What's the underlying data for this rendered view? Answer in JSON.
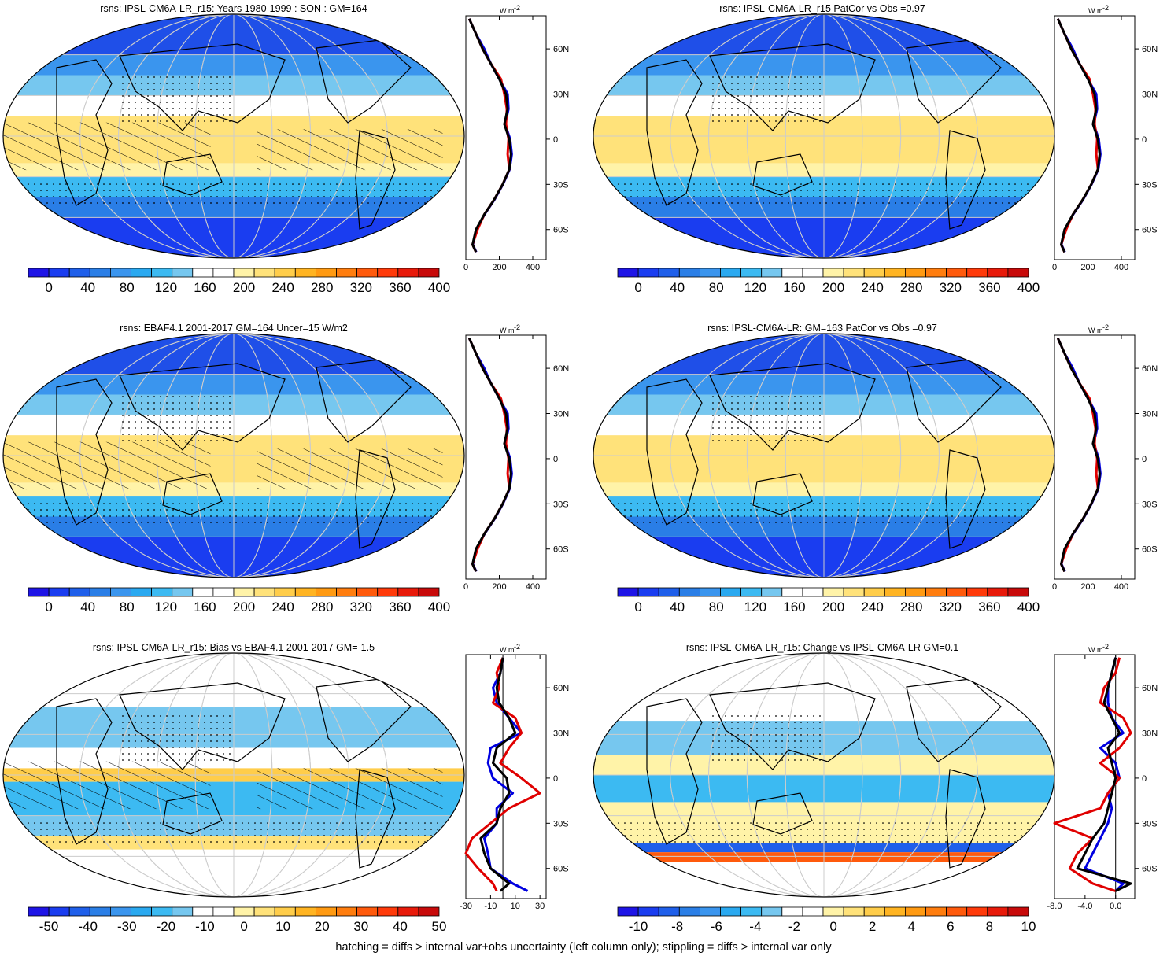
{
  "colorbars": {
    "abs": [
      "#1e14e6",
      "#1a3df0",
      "#1f5fea",
      "#2a7ee6",
      "#3a95ee",
      "#2aa9f0",
      "#3cbaf2",
      "#76c7ef",
      "#ffffff",
      "#ffffff",
      "#fff3a8",
      "#ffe27a",
      "#ffcd4a",
      "#ffb422",
      "#ff9a12",
      "#ff7d0e",
      "#ff5a0c",
      "#ff3a0a",
      "#e81a0a",
      "#c80a0a"
    ],
    "bias": [
      "#1e14e6",
      "#1a3df0",
      "#1f5fea",
      "#2a7ee6",
      "#3a95ee",
      "#2aa9f0",
      "#3cbaf2",
      "#76c7ef",
      "#ffffff",
      "#ffffff",
      "#fff3a8",
      "#ffe27a",
      "#ffcd4a",
      "#ffb422",
      "#ff9a12",
      "#ff7d0e",
      "#ff5a0c",
      "#ff3a0a",
      "#e81a0a",
      "#c80a0a"
    ]
  },
  "panels": [
    {
      "id": "p1",
      "title": "rsns: IPSL-CM6A-LR_r15: Years 1980-1999 : SON : GM=164",
      "cbar_labels": [
        "0",
        "40",
        "80",
        "120",
        "160",
        "200",
        "240",
        "280",
        "320",
        "360",
        "400"
      ],
      "profile_ticks": [
        "0",
        "200",
        "400"
      ],
      "profile_type": "abs"
    },
    {
      "id": "p2",
      "title": "rsns: IPSL-CM6A-LR_r15 PatCor vs Obs =0.97",
      "cbar_labels": [
        "0",
        "40",
        "80",
        "120",
        "160",
        "200",
        "240",
        "280",
        "320",
        "360",
        "400"
      ],
      "profile_ticks": [
        "0",
        "200",
        "400"
      ],
      "profile_type": "abs"
    },
    {
      "id": "p3",
      "title": "rsns: EBAF4.1 2001-2017 GM=164 Uncer=15 W/m2",
      "cbar_labels": [
        "0",
        "40",
        "80",
        "120",
        "160",
        "200",
        "240",
        "280",
        "320",
        "360",
        "400"
      ],
      "profile_ticks": [
        "0",
        "200",
        "400"
      ],
      "profile_type": "abs"
    },
    {
      "id": "p4",
      "title": "rsns: IPSL-CM6A-LR: GM=163 PatCor vs Obs =0.97",
      "cbar_labels": [
        "0",
        "40",
        "80",
        "120",
        "160",
        "200",
        "240",
        "280",
        "320",
        "360",
        "400"
      ],
      "profile_ticks": [
        "0",
        "200",
        "400"
      ],
      "profile_type": "abs"
    },
    {
      "id": "p5",
      "title": "rsns: IPSL-CM6A-LR_r15: Bias vs EBAF4.1 2001-2017  GM=-1.5",
      "cbar_labels": [
        "-50",
        "-40",
        "-30",
        "-20",
        "-10",
        "0",
        "10",
        "20",
        "30",
        "40",
        "50"
      ],
      "profile_ticks": [
        "-30",
        "-10",
        "10",
        "30"
      ],
      "profile_type": "bias"
    },
    {
      "id": "p6",
      "title": "rsns: IPSL-CM6A-LR_r15: Change vs IPSL-CM6A-LR GM=0.1",
      "cbar_labels": [
        "-10",
        "-8",
        "-6",
        "-4",
        "-2",
        "0",
        "2",
        "4",
        "6",
        "8",
        "10"
      ],
      "profile_ticks": [
        "-8.0",
        "-4.0",
        "0.0"
      ],
      "profile_type": "change"
    }
  ],
  "lat_labels": [
    "60N",
    "30N",
    "0",
    "30S",
    "60S"
  ],
  "profile_unit": "W m",
  "profile_unit_sup": "-2",
  "footer": "hatching = diffs > internal var+obs uncertainty (left column only); stippling = diffs > internal var only",
  "chart_data": {
    "type": "heatmap",
    "variable": "rsns",
    "zonal_profile_lat": [
      80,
      70,
      60,
      50,
      40,
      30,
      20,
      10,
      0,
      -10,
      -20,
      -30,
      -40,
      -50,
      -60,
      -70,
      -75
    ],
    "panels": [
      {
        "title": "rsns: IPSL-CM6A-LR_r15: Years 1980-1999 : SON : GM=164",
        "colorbar_range": [
          0,
          400
        ],
        "series": [
          {
            "color": "#000000",
            "values": [
              20,
              60,
              100,
              150,
              200,
              240,
              250,
              230,
              260,
              270,
              260,
              220,
              170,
              110,
              60,
              40,
              60
            ]
          },
          {
            "color": "#e00000",
            "values": [
              20,
              60,
              100,
              150,
              210,
              230,
              245,
              240,
              255,
              250,
              260,
              220,
              170,
              110,
              70,
              40,
              60
            ]
          },
          {
            "color": "#0000e0",
            "values": [
              20,
              60,
              110,
              150,
              200,
              250,
              255,
              235,
              265,
              275,
              262,
              222,
              172,
              112,
              62,
              42,
              62
            ]
          }
        ]
      },
      {
        "title": "rsns: IPSL-CM6A-LR_r15 PatCor vs Obs =0.97",
        "colorbar_range": [
          0,
          400
        ],
        "series": [
          {
            "color": "#000000",
            "values": [
              20,
              60,
              100,
              150,
              200,
              240,
              250,
              230,
              260,
              270,
              260,
              220,
              170,
              110,
              60,
              40,
              60
            ]
          },
          {
            "color": "#e00000",
            "values": [
              20,
              60,
              100,
              150,
              210,
              230,
              245,
              240,
              255,
              250,
              260,
              220,
              170,
              110,
              70,
              40,
              60
            ]
          },
          {
            "color": "#0000e0",
            "values": [
              20,
              60,
              110,
              150,
              200,
              250,
              255,
              235,
              265,
              275,
              262,
              222,
              172,
              112,
              62,
              42,
              62
            ]
          }
        ]
      },
      {
        "title": "rsns: EBAF4.1 2001-2017 GM=164 Uncer=15 W/m2",
        "colorbar_range": [
          0,
          400
        ],
        "series": [
          {
            "color": "#000000",
            "values": [
              20,
              60,
              100,
              150,
              200,
              240,
              250,
              230,
              260,
              270,
              260,
              220,
              170,
              110,
              60,
              40,
              60
            ]
          },
          {
            "color": "#e00000",
            "values": [
              20,
              60,
              100,
              150,
              210,
              230,
              245,
              240,
              255,
              250,
              260,
              220,
              170,
              110,
              70,
              40,
              60
            ]
          },
          {
            "color": "#0000e0",
            "values": [
              20,
              60,
              110,
              150,
              200,
              250,
              255,
              235,
              265,
              275,
              262,
              222,
              172,
              112,
              62,
              42,
              62
            ]
          }
        ]
      },
      {
        "title": "rsns: IPSL-CM6A-LR: GM=163 PatCor vs Obs =0.97",
        "colorbar_range": [
          0,
          400
        ],
        "series": [
          {
            "color": "#000000",
            "values": [
              20,
              60,
              100,
              150,
              200,
              240,
              250,
              230,
              260,
              270,
              260,
              220,
              170,
              110,
              60,
              40,
              60
            ]
          },
          {
            "color": "#e00000",
            "values": [
              20,
              60,
              100,
              150,
              210,
              230,
              245,
              240,
              255,
              250,
              260,
              220,
              170,
              110,
              70,
              40,
              60
            ]
          },
          {
            "color": "#0000e0",
            "values": [
              20,
              60,
              110,
              150,
              200,
              250,
              255,
              235,
              265,
              275,
              262,
              222,
              172,
              112,
              62,
              42,
              62
            ]
          }
        ]
      },
      {
        "title": "rsns: IPSL-CM6A-LR_r15: Bias vs EBAF4.1 2001-2017  GM=-1.5",
        "colorbar_range": [
          -50,
          50
        ],
        "series": [
          {
            "color": "#000000",
            "values": [
              0,
              -2,
              -5,
              -3,
              5,
              10,
              -5,
              -8,
              3,
              5,
              -2,
              -5,
              -18,
              -15,
              -10,
              5,
              -2
            ]
          },
          {
            "color": "#e00000",
            "values": [
              0,
              -5,
              -3,
              -8,
              10,
              15,
              5,
              -2,
              15,
              30,
              5,
              -10,
              -25,
              -30,
              -20,
              -8,
              -5
            ]
          },
          {
            "color": "#0000e0",
            "values": [
              0,
              -2,
              -8,
              -5,
              5,
              15,
              -10,
              -12,
              -8,
              8,
              -5,
              -5,
              -15,
              -12,
              -10,
              8,
              20
            ]
          }
        ]
      },
      {
        "title": "rsns: IPSL-CM6A-LR_r15: Change vs IPSL-CM6A-LR GM=0.1",
        "colorbar_range": [
          -10,
          10
        ],
        "series": [
          {
            "color": "#000000",
            "values": [
              0,
              -0.5,
              -1,
              -1.5,
              -0.5,
              0.5,
              -1,
              -0.5,
              0,
              -0.5,
              -1,
              -1.5,
              -3,
              -4,
              -5,
              2,
              0
            ]
          },
          {
            "color": "#e00000",
            "values": [
              0.5,
              0,
              -1.5,
              -2,
              1,
              2,
              0.5,
              -2,
              0.5,
              -1,
              -2,
              -8,
              -3,
              -5,
              -6,
              -3,
              0
            ]
          },
          {
            "color": "#0000e0",
            "values": [
              0,
              -0.5,
              -1,
              -1,
              -0.5,
              1,
              -2,
              0,
              0.5,
              -1,
              -0.5,
              -1,
              -2,
              -3,
              -4,
              1,
              0
            ]
          }
        ]
      }
    ]
  }
}
